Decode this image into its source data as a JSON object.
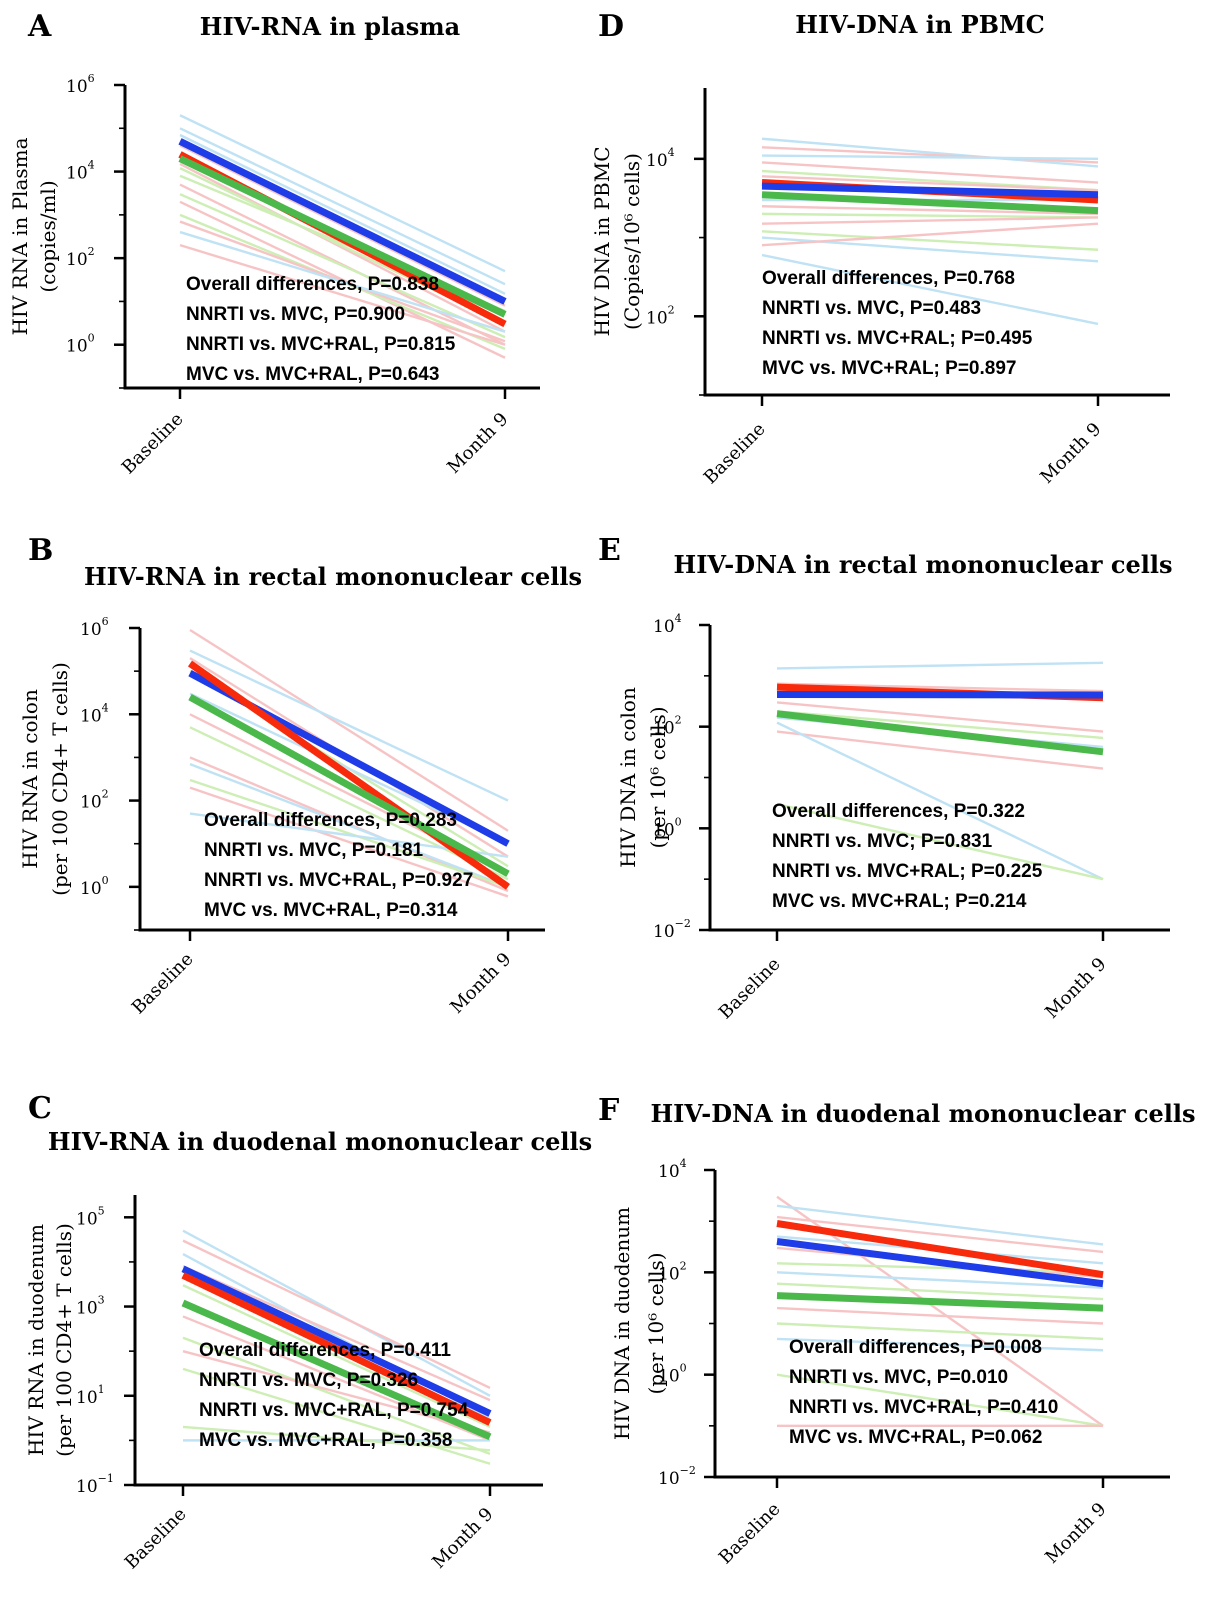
{
  "colors": {
    "NNRTI": "#f82a0c",
    "MVC": "#1e3ce8",
    "MVC+RAL": "#4ab84a",
    "NNRTI_individual": "#f7c4c6",
    "MVC_individual": "#bfe2f4",
    "MVC+RAL_individual": "#cdeeb4"
  },
  "chart_data": [
    {
      "panel": "A",
      "type": "line",
      "title": "HIV-RNA in plasma",
      "ylabel": [
        "HIV RNA in Plasma",
        "(copies/ml)"
      ],
      "yscale": "log",
      "ylim_exp": [
        -1,
        6
      ],
      "yticks_exp": [
        0,
        2,
        4,
        6
      ],
      "categories": [
        "Baseline",
        "Month 9"
      ],
      "series": [
        {
          "group": "MVC",
          "values": [
            50000,
            10
          ]
        },
        {
          "group": "NNRTI",
          "values": [
            25000,
            3
          ]
        },
        {
          "group": "MVC+RAL",
          "values": [
            20000,
            5
          ]
        }
      ],
      "individual": [
        {
          "group": "MVC",
          "values": [
            200000,
            50
          ]
        },
        {
          "group": "MVC",
          "values": [
            100000,
            25
          ]
        },
        {
          "group": "MVC",
          "values": [
            70000,
            15
          ]
        },
        {
          "group": "NNRTI",
          "values": [
            40000,
            8
          ]
        },
        {
          "group": "NNRTI",
          "values": [
            15000,
            2
          ]
        },
        {
          "group": "MVC+RAL",
          "values": [
            12000,
            3
          ]
        },
        {
          "group": "MVC+RAL",
          "values": [
            8000,
            6
          ]
        },
        {
          "group": "NNRTI",
          "values": [
            5000,
            1
          ]
        },
        {
          "group": "MVC+RAL",
          "values": [
            3000,
            1.5
          ]
        },
        {
          "group": "NNRTI",
          "values": [
            2000,
            0.5
          ]
        },
        {
          "group": "MVC+RAL",
          "values": [
            1000,
            0.8
          ]
        },
        {
          "group": "NNRTI",
          "values": [
            700,
            1.2
          ]
        },
        {
          "group": "MVC",
          "values": [
            400,
            2
          ]
        },
        {
          "group": "NNRTI",
          "values": [
            200,
            1
          ]
        }
      ],
      "annotations": [
        "Overall differences, P=0.838",
        "NNRTI vs. MVC, P=0.900",
        "NNRTI vs. MVC+RAL, P=0.815",
        "MVC vs. MVC+RAL, P=0.643"
      ]
    },
    {
      "panel": "B",
      "type": "line",
      "title": "HIV-RNA in rectal mononuclear cells",
      "ylabel": [
        "HIV RNA in colon",
        "(per 100 CD4+ T cells)"
      ],
      "yscale": "log",
      "ylim_exp": [
        -1,
        6
      ],
      "yticks_exp": [
        0,
        2,
        4,
        6
      ],
      "categories": [
        "Baseline",
        "Month 9"
      ],
      "series": [
        {
          "group": "MVC",
          "values": [
            90000,
            10
          ]
        },
        {
          "group": "NNRTI",
          "values": [
            150000,
            1
          ]
        },
        {
          "group": "MVC+RAL",
          "values": [
            25000,
            2
          ]
        }
      ],
      "individual": [
        {
          "group": "NNRTI",
          "values": [
            900000,
            20
          ]
        },
        {
          "group": "MVC",
          "values": [
            300000,
            100
          ]
        },
        {
          "group": "NNRTI",
          "values": [
            200000,
            5
          ]
        },
        {
          "group": "MVC+RAL",
          "values": [
            100000,
            3
          ]
        },
        {
          "group": "MVC",
          "values": [
            30000,
            10
          ]
        },
        {
          "group": "NNRTI",
          "values": [
            10000,
            2
          ]
        },
        {
          "group": "MVC+RAL",
          "values": [
            5000,
            1.5
          ]
        },
        {
          "group": "NNRTI",
          "values": [
            1000,
            0.8
          ]
        },
        {
          "group": "MVC",
          "values": [
            700,
            1
          ]
        },
        {
          "group": "MVC+RAL",
          "values": [
            300,
            1
          ]
        },
        {
          "group": "NNRTI",
          "values": [
            200,
            0.6
          ]
        },
        {
          "group": "MVC",
          "values": [
            50,
            5
          ]
        }
      ],
      "annotations": [
        "Overall differences, P=0.283",
        "NNRTI vs. MVC, P=0.181",
        "NNRTI vs. MVC+RAL, P=0.927",
        "MVC vs. MVC+RAL, P=0.314"
      ]
    },
    {
      "panel": "C",
      "type": "line",
      "title": "HIV-RNA in duodenal mononuclear cells",
      "ylabel": [
        "HIV RNA in duodenum",
        "(per 100 CD4+ T cells)"
      ],
      "yscale": "log",
      "ylim_exp": [
        -1,
        5.5
      ],
      "yticks_exp": [
        -1,
        1,
        3,
        5
      ],
      "categories": [
        "Baseline",
        "Month 9"
      ],
      "series": [
        {
          "group": "MVC",
          "values": [
            7000,
            4
          ]
        },
        {
          "group": "NNRTI",
          "values": [
            5000,
            2.5
          ]
        },
        {
          "group": "MVC+RAL",
          "values": [
            1200,
            1.2
          ]
        }
      ],
      "individual": [
        {
          "group": "MVC",
          "values": [
            50000,
            10
          ]
        },
        {
          "group": "NNRTI",
          "values": [
            30000,
            15
          ]
        },
        {
          "group": "MVC",
          "values": [
            15000,
            3
          ]
        },
        {
          "group": "NNRTI",
          "values": [
            8000,
            8
          ]
        },
        {
          "group": "MVC+RAL",
          "values": [
            3000,
            2
          ]
        },
        {
          "group": "NNRTI",
          "values": [
            600,
            1
          ]
        },
        {
          "group": "MVC+RAL",
          "values": [
            200,
            0.5
          ]
        },
        {
          "group": "NNRTI",
          "values": [
            100,
            1.5
          ]
        },
        {
          "group": "MVC+RAL",
          "values": [
            40,
            0.3
          ]
        },
        {
          "group": "MVC",
          "values": [
            1,
            1
          ]
        },
        {
          "group": "MVC+RAL",
          "values": [
            2,
            0.6
          ]
        }
      ],
      "annotations": [
        "Overall differences, P=0.411",
        "NNRTI vs. MVC, P=0.326",
        "NNRTI vs. MVC+RAL, P=0.754",
        "MVC vs. MVC+RAL, P=0.358"
      ]
    },
    {
      "panel": "D",
      "type": "line",
      "title": "HIV-DNA in PBMC",
      "ylabel": [
        "HIV DNA in PBMC",
        "(Copies/10⁶ cells)"
      ],
      "yscale": "log",
      "ylim_exp": [
        1,
        4.9
      ],
      "yticks_exp": [
        2,
        4
      ],
      "categories": [
        "Baseline",
        "Month 9"
      ],
      "series": [
        {
          "group": "NNRTI",
          "values": [
            5000,
            3000
          ]
        },
        {
          "group": "MVC",
          "values": [
            4500,
            3500
          ]
        },
        {
          "group": "MVC+RAL",
          "values": [
            3500,
            2200
          ]
        }
      ],
      "individual": [
        {
          "group": "MVC",
          "values": [
            18000,
            8000
          ]
        },
        {
          "group": "NNRTI",
          "values": [
            14000,
            9000
          ]
        },
        {
          "group": "MVC",
          "values": [
            11000,
            10000
          ]
        },
        {
          "group": "NNRTI",
          "values": [
            9000,
            5000
          ]
        },
        {
          "group": "MVC+RAL",
          "values": [
            7000,
            4000
          ]
        },
        {
          "group": "NNRTI",
          "values": [
            6000,
            4000
          ]
        },
        {
          "group": "MVC",
          "values": [
            3000,
            3000
          ]
        },
        {
          "group": "NNRTI",
          "values": [
            2500,
            2000
          ]
        },
        {
          "group": "MVC+RAL",
          "values": [
            2000,
            1800
          ]
        },
        {
          "group": "NNRTI",
          "values": [
            1500,
            1800
          ]
        },
        {
          "group": "MVC",
          "values": [
            1000,
            500
          ]
        },
        {
          "group": "MVC+RAL",
          "values": [
            1200,
            700
          ]
        },
        {
          "group": "NNRTI",
          "values": [
            800,
            1500
          ]
        },
        {
          "group": "MVC",
          "values": [
            600,
            80
          ]
        }
      ],
      "annotations": [
        "Overall differences, P=0.768",
        "NNRTI vs. MVC, P=0.483",
        "NNRTI vs. MVC+RAL; P=0.495",
        "MVC vs. MVC+RAL; P=0.897"
      ]
    },
    {
      "panel": "E",
      "type": "line",
      "title": "HIV-DNA in rectal mononuclear cells",
      "ylabel": [
        "HIV DNA in colon",
        "(per 10⁶ cells)"
      ],
      "yscale": "log",
      "ylim_exp": [
        -2,
        4
      ],
      "yticks_exp": [
        -2,
        0,
        2,
        4
      ],
      "categories": [
        "Baseline",
        "Month 9"
      ],
      "series": [
        {
          "group": "NNRTI",
          "values": [
            600,
            370
          ]
        },
        {
          "group": "MVC",
          "values": [
            430,
            420
          ]
        },
        {
          "group": "MVC+RAL",
          "values": [
            180,
            32
          ]
        }
      ],
      "individual": [
        {
          "group": "MVC",
          "values": [
            1400,
            1800
          ]
        },
        {
          "group": "NNRTI",
          "values": [
            700,
            500
          ]
        },
        {
          "group": "MVC",
          "values": [
            500,
            350
          ]
        },
        {
          "group": "NNRTI",
          "values": [
            300,
            80
          ]
        },
        {
          "group": "MVC+RAL",
          "values": [
            200,
            60
          ]
        },
        {
          "group": "MVC",
          "values": [
            150,
            40
          ]
        },
        {
          "group": "NNRTI",
          "values": [
            80,
            15
          ]
        },
        {
          "group": "MVC",
          "values": [
            120,
            0.1
          ]
        },
        {
          "group": "MVC+RAL",
          "values": [
            3,
            0.1
          ]
        }
      ],
      "annotations": [
        "Overall differences, P=0.322",
        "NNRTI vs. MVC; P=0.831",
        "NNRTI vs. MVC+RAL; P=0.225",
        "MVC vs. MVC+RAL; P=0.214"
      ]
    },
    {
      "panel": "F",
      "type": "line",
      "title": "HIV-DNA in duodenal mononuclear cells",
      "ylabel": [
        "HIV DNA  in duodenum",
        "(per 10⁶ cells)"
      ],
      "yscale": "log",
      "ylim_exp": [
        -2,
        4
      ],
      "yticks_exp": [
        -2,
        0,
        2,
        4
      ],
      "categories": [
        "Baseline",
        "Month 9"
      ],
      "series": [
        {
          "group": "NNRTI",
          "values": [
            900,
            90
          ]
        },
        {
          "group": "MVC",
          "values": [
            400,
            60
          ]
        },
        {
          "group": "MVC+RAL",
          "values": [
            35,
            20
          ]
        }
      ],
      "individual": [
        {
          "group": "NNRTI",
          "values": [
            3000,
            0.1
          ]
        },
        {
          "group": "MVC",
          "values": [
            2000,
            350
          ]
        },
        {
          "group": "NNRTI",
          "values": [
            1200,
            250
          ]
        },
        {
          "group": "MVC",
          "values": [
            500,
            150
          ]
        },
        {
          "group": "NNRTI",
          "values": [
            300,
            80
          ]
        },
        {
          "group": "MVC+RAL",
          "values": [
            150,
            100
          ]
        },
        {
          "group": "MVC",
          "values": [
            100,
            50
          ]
        },
        {
          "group": "MVC+RAL",
          "values": [
            60,
            30
          ]
        },
        {
          "group": "NNRTI",
          "values": [
            20,
            10
          ]
        },
        {
          "group": "MVC+RAL",
          "values": [
            10,
            5
          ]
        },
        {
          "group": "MVC",
          "values": [
            5,
            3
          ]
        },
        {
          "group": "MVC+RAL",
          "values": [
            1,
            0.1
          ]
        },
        {
          "group": "NNRTI",
          "values": [
            0.1,
            0.1
          ]
        }
      ],
      "annotations": [
        "Overall differences, P=0.008",
        "NNRTI vs. MVC, P=0.010",
        "NNRTI vs. MVC+RAL, P=0.410",
        "MVC vs. MVC+RAL, P=0.062"
      ]
    }
  ]
}
